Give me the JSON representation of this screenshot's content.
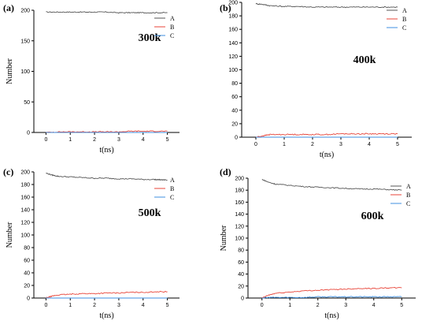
{
  "chart_data": [
    {
      "type": "line",
      "panel_label": "(a)",
      "title": "300k",
      "xlabel": "t(ns)",
      "ylabel": "Number",
      "xlim": [
        -0.5,
        5.5
      ],
      "ylim": [
        0,
        200
      ],
      "xticks": [
        0,
        1,
        2,
        3,
        4,
        5
      ],
      "yticks": [
        0,
        50,
        100,
        150,
        200
      ],
      "legend": "top-right",
      "series": [
        {
          "name": "A",
          "color": "#555555",
          "x": [
            0,
            0.5,
            1,
            1.5,
            2,
            2.5,
            3,
            3.5,
            4,
            4.5,
            5
          ],
          "y": [
            197,
            197,
            197,
            197,
            197,
            197,
            196,
            196,
            196,
            196,
            196
          ]
        },
        {
          "name": "B",
          "color": "#e8463a",
          "x": [
            0,
            0.5,
            1,
            1.5,
            2,
            2.5,
            3,
            3.5,
            4,
            4.5,
            5
          ],
          "y": [
            0,
            1,
            1,
            1,
            1,
            1,
            1,
            2,
            2,
            2,
            2
          ]
        },
        {
          "name": "C",
          "color": "#3f8fe0",
          "x": [
            0,
            0.5,
            1,
            1.5,
            2,
            2.5,
            3,
            3.5,
            4,
            4.5,
            5
          ],
          "y": [
            0,
            0,
            0,
            0,
            0,
            0,
            0,
            0,
            0,
            0,
            0
          ]
        }
      ]
    },
    {
      "type": "line",
      "panel_label": "(b)",
      "title": "400k",
      "xlabel": "t(ns)",
      "ylabel": "",
      "xlim": [
        -0.5,
        5.5
      ],
      "ylim": [
        0,
        200
      ],
      "xticks": [
        0,
        1,
        2,
        3,
        4,
        5
      ],
      "yticks": [
        0,
        20,
        40,
        60,
        80,
        100,
        120,
        140,
        160,
        180,
        200
      ],
      "legend": "top-right",
      "series": [
        {
          "name": "A",
          "color": "#555555",
          "x": [
            0,
            0.25,
            0.5,
            1,
            1.5,
            2,
            2.5,
            3,
            3.5,
            4,
            4.5,
            5
          ],
          "y": [
            198,
            197,
            195,
            194,
            194,
            193,
            193,
            193,
            193,
            193,
            193,
            193
          ]
        },
        {
          "name": "B",
          "color": "#e8463a",
          "x": [
            0,
            0.25,
            0.5,
            1,
            1.5,
            2,
            2.5,
            3,
            3.5,
            4,
            4.5,
            5
          ],
          "y": [
            0,
            2,
            4,
            4,
            4,
            4,
            4,
            5,
            5,
            5,
            5,
            5
          ]
        },
        {
          "name": "C",
          "color": "#3f8fe0",
          "x": [
            0,
            0.25,
            0.5,
            1,
            1.5,
            2,
            2.5,
            3,
            3.5,
            4,
            4.5,
            5
          ],
          "y": [
            0,
            0,
            0,
            0,
            0,
            0,
            0,
            0,
            0,
            0,
            0,
            0
          ]
        }
      ]
    },
    {
      "type": "line",
      "panel_label": "(c)",
      "title": "500k",
      "xlabel": "t(ns)",
      "ylabel": "Number",
      "xlim": [
        -0.5,
        5.5
      ],
      "ylim": [
        0,
        200
      ],
      "xticks": [
        0,
        1,
        2,
        3,
        4,
        5
      ],
      "yticks": [
        0,
        20,
        40,
        60,
        80,
        100,
        120,
        140,
        160,
        180,
        200
      ],
      "legend": "top-right",
      "series": [
        {
          "name": "A",
          "color": "#555555",
          "x": [
            0,
            0.25,
            0.5,
            1,
            1.5,
            2,
            2.5,
            3,
            3.5,
            4,
            4.5,
            5
          ],
          "y": [
            198,
            195,
            193,
            192,
            191,
            190,
            190,
            189,
            189,
            188,
            188,
            187
          ]
        },
        {
          "name": "B",
          "color": "#e8463a",
          "x": [
            0,
            0.25,
            0.5,
            1,
            1.5,
            2,
            2.5,
            3,
            3.5,
            4,
            4.5,
            5
          ],
          "y": [
            0,
            3,
            5,
            6,
            7,
            7,
            8,
            8,
            9,
            9,
            10,
            10
          ]
        },
        {
          "name": "C",
          "color": "#3f8fe0",
          "x": [
            0,
            0.25,
            0.5,
            1,
            1.5,
            2,
            2.5,
            3,
            3.5,
            4,
            4.5,
            5
          ],
          "y": [
            0,
            0,
            0,
            0,
            0,
            0,
            0,
            0,
            0,
            0,
            0,
            0
          ]
        }
      ]
    },
    {
      "type": "line",
      "panel_label": "(d)",
      "title": "600k",
      "xlabel": "t(ns)",
      "ylabel": "Number",
      "xlim": [
        -0.5,
        5.5
      ],
      "ylim": [
        0,
        200
      ],
      "xticks": [
        0,
        1,
        2,
        3,
        4,
        5
      ],
      "yticks": [
        0,
        20,
        40,
        60,
        80,
        100,
        120,
        140,
        160,
        180,
        200
      ],
      "legend": "top-right",
      "series": [
        {
          "name": "A",
          "color": "#555555",
          "x": [
            0,
            0.25,
            0.5,
            1,
            1.5,
            2,
            2.5,
            3,
            3.5,
            4,
            4.5,
            5
          ],
          "y": [
            198,
            193,
            190,
            188,
            186,
            185,
            184,
            183,
            182,
            182,
            181,
            180
          ]
        },
        {
          "name": "B",
          "color": "#e8463a",
          "x": [
            0,
            0.25,
            0.5,
            1,
            1.5,
            2,
            2.5,
            3,
            3.5,
            4,
            4.5,
            5
          ],
          "y": [
            0,
            5,
            8,
            10,
            12,
            13,
            14,
            15,
            16,
            16,
            17,
            17
          ]
        },
        {
          "name": "C",
          "color": "#3f8fe0",
          "x": [
            0,
            0.25,
            0.5,
            1,
            1.5,
            2,
            2.5,
            3,
            3.5,
            4,
            4.5,
            5
          ],
          "y": [
            0,
            1,
            1,
            1,
            1,
            2,
            2,
            2,
            2,
            2,
            2,
            2
          ]
        }
      ]
    }
  ]
}
